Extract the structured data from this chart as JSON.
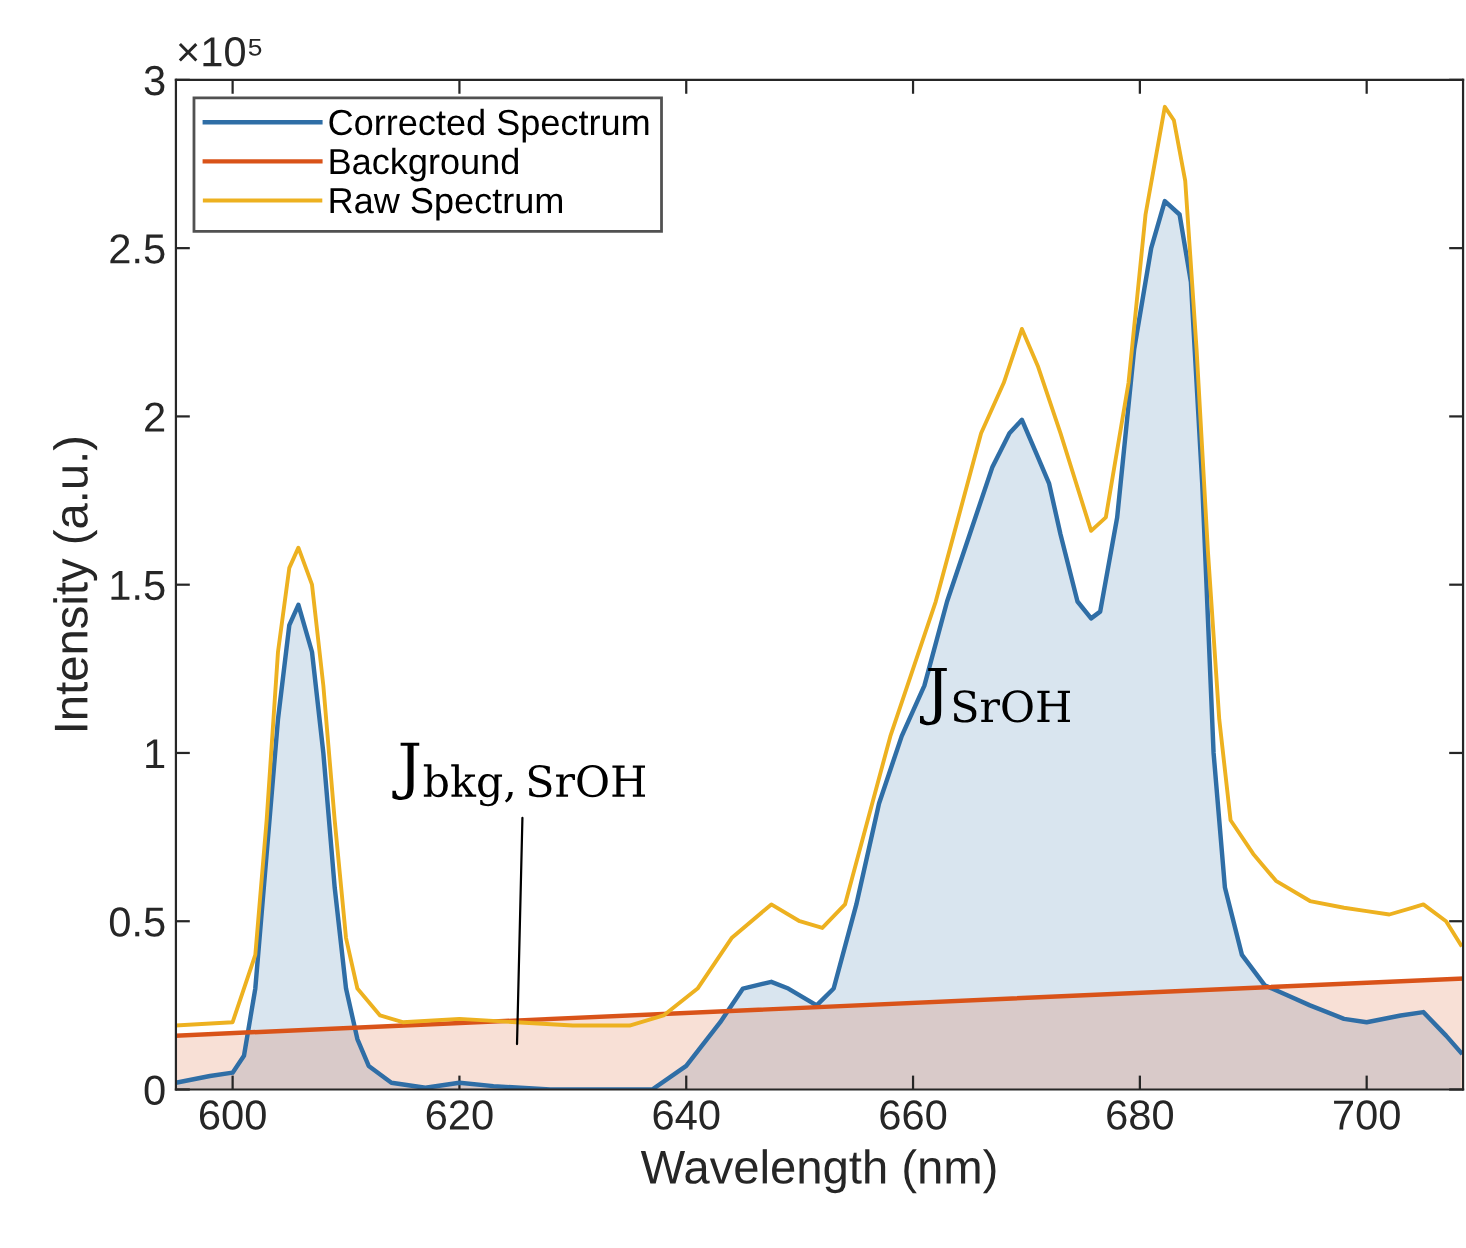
{
  "chart_data": {
    "type": "area",
    "xlabel": "Wavelength (nm)",
    "ylabel": "Intensity (a.u.)",
    "xlim": [
      595,
      708.5
    ],
    "xticks": [
      600,
      620,
      640,
      660,
      680,
      700
    ],
    "ylim": [
      0,
      3
    ],
    "yticks": [
      0,
      0.5,
      1,
      1.5,
      2,
      2.5,
      3
    ],
    "grid": false,
    "legend": "top left",
    "series": [
      {
        "name": "Corrected Spectrum",
        "color": "#2f6ea6",
        "x": [
          595,
          598,
          600,
          601,
          602,
          603,
          604,
          605,
          605.8,
          607,
          608,
          609,
          610,
          611,
          612,
          614,
          617,
          620,
          623,
          628,
          637,
          640,
          643,
          645,
          647.5,
          649,
          651.5,
          653,
          655,
          657,
          659,
          661,
          663,
          665,
          667,
          668.5,
          669.6,
          671,
          672,
          673,
          674.5,
          675.7,
          676.5,
          678,
          679.5,
          681,
          682.2,
          683.5,
          684.5,
          685.5,
          686.5,
          687.5,
          689,
          691,
          693,
          695,
          698,
          700,
          703,
          705,
          707,
          708.3
        ],
        "values": [
          0.02,
          0.04,
          0.05,
          0.1,
          0.3,
          0.7,
          1.1,
          1.38,
          1.44,
          1.3,
          1.0,
          0.6,
          0.3,
          0.15,
          0.07,
          0.02,
          0.005,
          0.02,
          0.01,
          0,
          0,
          0.07,
          0.2,
          0.3,
          0.32,
          0.3,
          0.25,
          0.3,
          0.55,
          0.85,
          1.05,
          1.2,
          1.45,
          1.65,
          1.85,
          1.95,
          1.99,
          1.88,
          1.8,
          1.65,
          1.45,
          1.4,
          1.42,
          1.7,
          2.2,
          2.5,
          2.64,
          2.6,
          2.4,
          1.8,
          1.0,
          0.6,
          0.4,
          0.31,
          0.28,
          0.25,
          0.21,
          0.2,
          0.22,
          0.23,
          0.16,
          0.11
        ]
      },
      {
        "name": "Background",
        "color": "#d95319",
        "x": [
          595,
          708.5
        ],
        "values": [
          0.16,
          0.33
        ]
      },
      {
        "name": "Raw Spectrum",
        "type": "line",
        "color": "#edb120",
        "x": [
          595,
          600,
          602,
          603,
          604,
          605,
          605.8,
          607,
          608,
          609,
          610,
          611,
          613,
          615,
          620,
          625,
          630,
          635,
          638,
          641,
          644,
          647.5,
          650,
          652,
          654,
          656,
          658,
          660,
          662,
          664,
          666,
          668,
          669.6,
          671,
          673,
          675.7,
          677,
          679,
          680.5,
          682.2,
          683,
          684,
          685,
          686,
          687,
          688,
          690,
          692,
          695,
          698,
          700,
          702,
          704,
          705,
          707,
          708.3
        ],
        "values": [
          0.19,
          0.2,
          0.4,
          0.8,
          1.3,
          1.55,
          1.61,
          1.5,
          1.2,
          0.8,
          0.45,
          0.3,
          0.22,
          0.2,
          0.21,
          0.2,
          0.19,
          0.19,
          0.22,
          0.3,
          0.45,
          0.55,
          0.5,
          0.48,
          0.55,
          0.8,
          1.05,
          1.25,
          1.45,
          1.7,
          1.95,
          2.1,
          2.26,
          2.15,
          1.95,
          1.66,
          1.7,
          2.1,
          2.6,
          2.92,
          2.88,
          2.7,
          2.2,
          1.6,
          1.1,
          0.8,
          0.7,
          0.62,
          0.56,
          0.54,
          0.53,
          0.52,
          0.54,
          0.55,
          0.5,
          0.43
        ]
      }
    ],
    "annotations": [
      "×10⁵",
      "J$_{bkg,SrOH}$",
      "J$_{SrOH}$"
    ]
  }
}
